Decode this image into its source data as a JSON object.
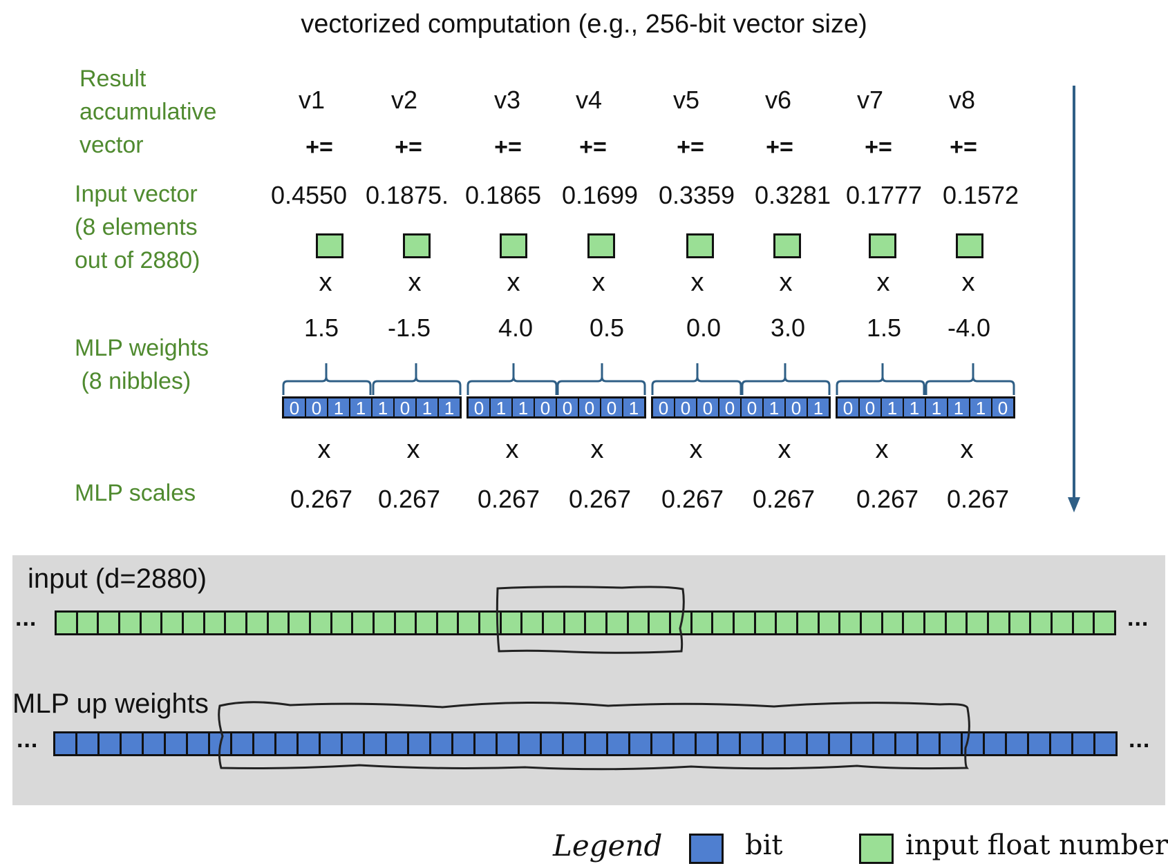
{
  "title": "vectorized computation (e.g., 256-bit vector size)",
  "labels": {
    "result": [
      "Result",
      "accumulative",
      "vector"
    ],
    "input": [
      "Input vector",
      "(8 elements",
      "out of 2880)"
    ],
    "weights": [
      "MLP weights",
      " (8 nibbles)"
    ],
    "scales": "MLP scales"
  },
  "vectors": [
    "v1",
    "v2",
    "v3",
    "v4",
    "v5",
    "v6",
    "v7",
    "v8"
  ],
  "accumulate_op": "+=",
  "multiply_op": "x",
  "inputs": [
    "0.4550",
    "0.1875.",
    "0.1865",
    "0.1699",
    "0.3359",
    "0.3281",
    "0.1777",
    "0.1572"
  ],
  "weights": [
    "1.5",
    "-1.5",
    "4.0",
    "0.5",
    "0.0",
    "3.0",
    "1.5",
    "-4.0"
  ],
  "nibbles": [
    "0011",
    "1011",
    "0110",
    "0001",
    "0000",
    "0101",
    "0011",
    "1110"
  ],
  "scales": [
    "0.267",
    "0.267",
    "0.267",
    "0.267",
    "0.267",
    "0.267",
    "0.267",
    "0.267"
  ],
  "panel": {
    "input_label": "input (d=2880)",
    "weights_label": "MLP up weights",
    "ellipsis": "..."
  },
  "legend": {
    "title": "Legend",
    "bit": "bit",
    "input": "input float number"
  },
  "colors": {
    "label_green": "#4f8a2f",
    "bit_blue": "#4f7fd0",
    "input_green": "#9adf95",
    "arrow_blue": "#2f5f86",
    "panel_gray": "#d9d9d9"
  }
}
